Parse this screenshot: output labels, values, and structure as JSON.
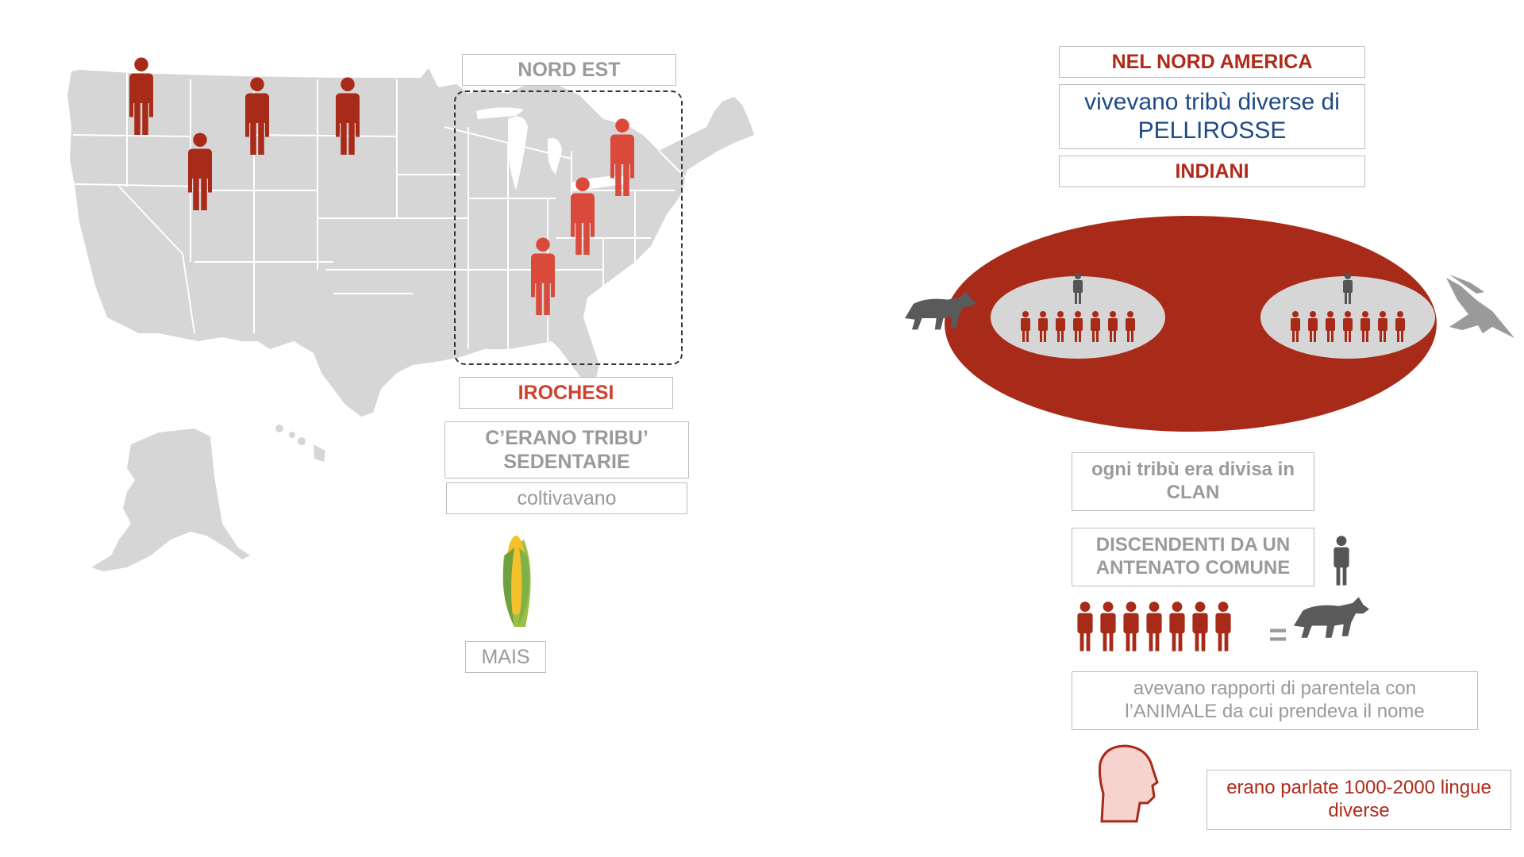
{
  "map": {
    "region_label": "NORD EST",
    "tribe_label": "IROCHESI",
    "sedentary_label": "C’ERANO TRIBU’ SEDENTARIE",
    "cultivated_label": "coltivavano",
    "crop_label": "MAIS",
    "icons": [
      "person-icon",
      "corn-icon"
    ],
    "colors": {
      "map": "#d6d6d6",
      "west_person": "#a82a18",
      "east_person": "#d94a3a"
    }
  },
  "right": {
    "heading": "NEL NORD AMERICA",
    "subheading": "vivevano tribù diverse di PELLIROSSE",
    "indians_label": "INDIANI",
    "clan_text": "ogni tribù era divisa in CLAN",
    "descendants_text": "DISCENDENTI DA UN ANTENATO COMUNE",
    "equals": "=",
    "kinship_text": "avevano rapporti di parentela con l’ANIMALE da cui prendeva il nome",
    "languages_text": "erano parlate 1000-2000 lingue diverse",
    "icons": [
      "wolf-icon",
      "eagle-icon",
      "head-icon",
      "person-icon"
    ],
    "colors": {
      "tribe": "#a82a18",
      "clan": "#d6d6d6",
      "ancestor": "#555555",
      "animal": "#5a5a5a"
    }
  }
}
